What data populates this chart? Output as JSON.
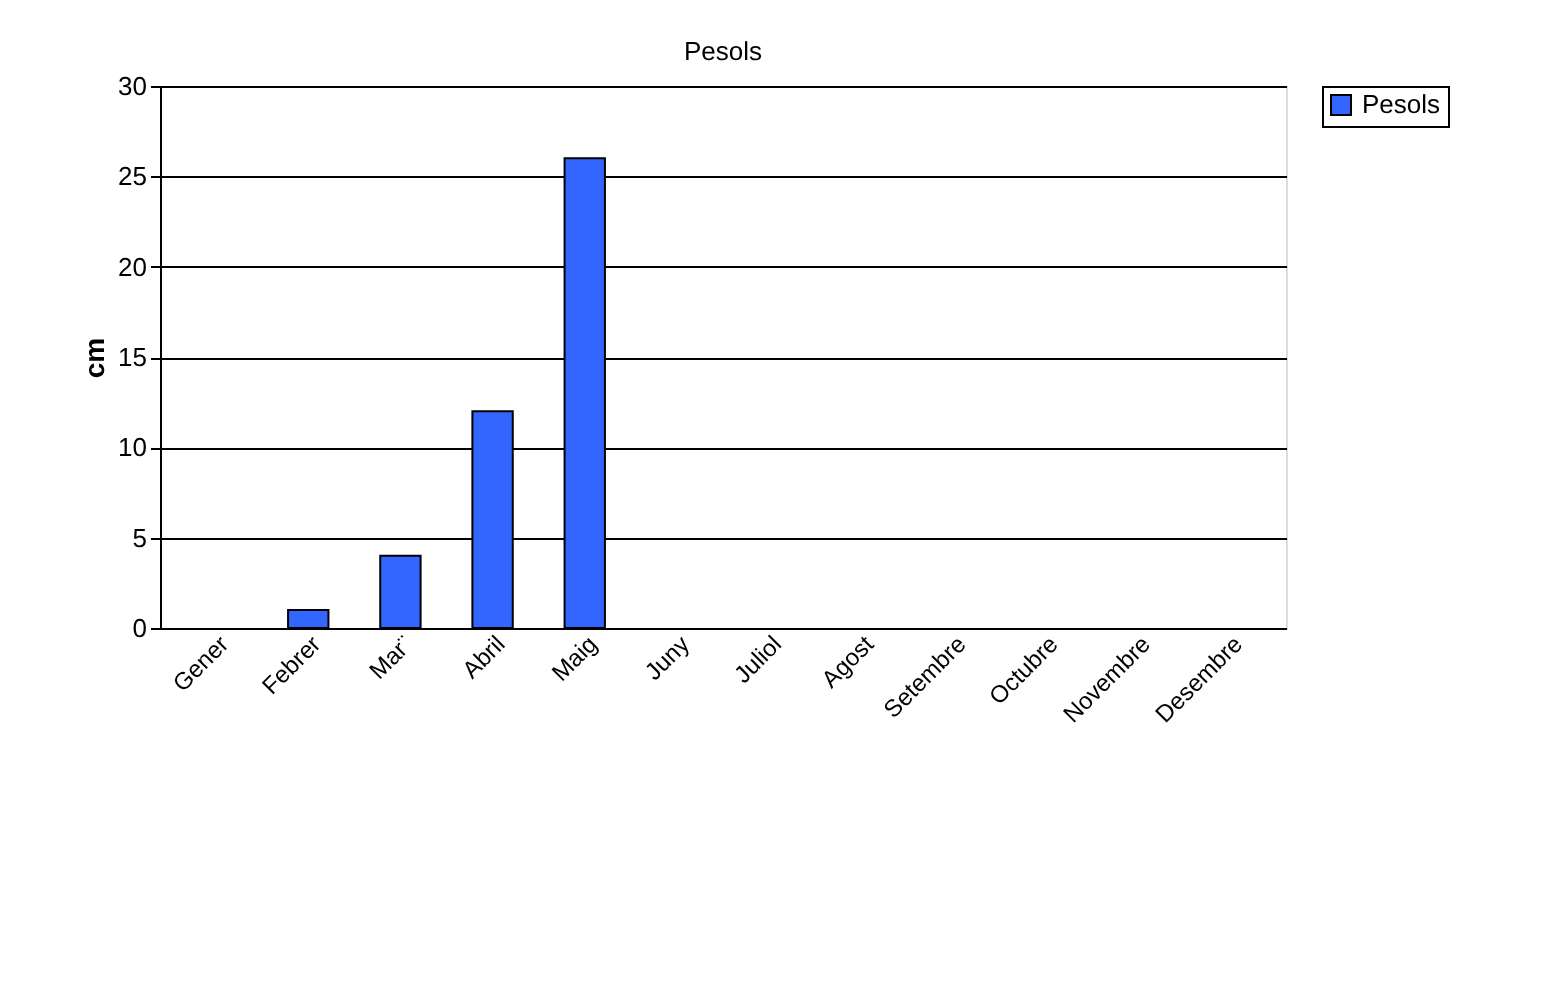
{
  "chart_data": {
    "type": "bar",
    "title": "Pesols",
    "ylabel": "cm",
    "categories": [
      "Gener",
      "Febrer",
      "Mar¨",
      "Abril",
      "Maig",
      "Juny",
      "Juliol",
      "Agost",
      "Setembre",
      "Octubre",
      "Novembre",
      "Desembre"
    ],
    "series": [
      {
        "name": "Pesols",
        "color": "#3366ff",
        "values": [
          null,
          1,
          4,
          12,
          26,
          null,
          null,
          null,
          null,
          null,
          null,
          null
        ]
      }
    ],
    "ylim": [
      0,
      30
    ],
    "yticks": [
      0,
      5,
      10,
      15,
      20,
      25,
      30
    ],
    "grid": "y",
    "legend": "right"
  }
}
